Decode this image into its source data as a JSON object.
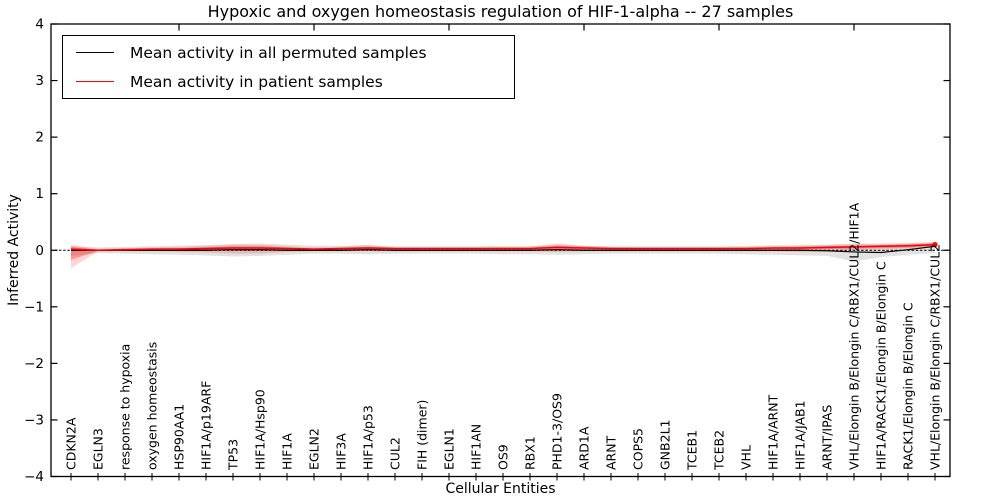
{
  "page": {
    "background": "#ffffff"
  },
  "legend": {
    "items": [
      {
        "label": "Mean activity in all permuted samples",
        "color": "#000000"
      },
      {
        "label": "Mean activity in patient samples",
        "color": "#ff0000"
      }
    ]
  },
  "chart_data": {
    "type": "line",
    "title": "Hypoxic and oxygen homeostasis regulation of HIF-1-alpha -- 27 samples",
    "xlabel": "Cellular Entities",
    "ylabel": "Inferred Activity",
    "ylim": [
      -4,
      4
    ],
    "yticks": [
      {
        "v": 4,
        "label": "4"
      },
      {
        "v": 3,
        "label": "3"
      },
      {
        "v": 2,
        "label": "2"
      },
      {
        "v": 1,
        "label": "1"
      },
      {
        "v": 0,
        "label": "0"
      },
      {
        "v": -1,
        "label": "−1"
      },
      {
        "v": -2,
        "label": "−2"
      },
      {
        "v": -3,
        "label": "−3"
      },
      {
        "v": -4,
        "label": "−4"
      }
    ],
    "xtick_major_values": [
      5,
      10,
      15,
      20,
      25,
      30
    ],
    "zero_reference_line": {
      "style": "dotted",
      "color": "#000000",
      "y": 0
    },
    "grid": "off",
    "legend_position": "upper-left",
    "categories": [
      "CDKN2A",
      "EGLN3",
      "response to hypoxia",
      "oxygen homeostasis",
      "HSP90AA1",
      "HIF1A/p19ARF",
      "TP53",
      "HIF1A/Hsp90",
      "HIF1A",
      "EGLN2",
      "HIF3A",
      "HIF1A/p53",
      "CUL2",
      "FIH (dimer)",
      "EGLN1",
      "HIF1AN",
      "OS9",
      "RBX1",
      "PHD1-3/OS9",
      "ARD1A",
      "ARNT",
      "COPS5",
      "GNB2L1",
      "TCEB1",
      "TCEB2",
      "VHL",
      "HIF1A/ARNT",
      "HIF1A/JAB1",
      "ARNT/IPAS",
      "VHL/Elongin B/Elongin C/RBX1/CUL2/HIF1A",
      "HIF1A/RACK1/Elongin B/Elongin C",
      "RACK1/Elongin B/Elongin C",
      "VHL/Elongin B/Elongin C/RBX1/CUL2"
    ],
    "series": [
      {
        "name": "Mean activity in all permuted samples",
        "color": "#000000",
        "width": 1.2,
        "values": [
          0,
          0,
          0,
          0,
          0,
          0,
          0.01,
          0.01,
          0,
          0,
          0,
          0.01,
          0,
          0,
          0,
          0,
          0,
          0,
          0.01,
          0,
          0,
          0,
          0,
          0,
          0,
          0,
          0,
          0,
          -0.01,
          -0.03,
          -0.04,
          0.01,
          0.07
        ]
      },
      {
        "name": "Mean activity in patient samples",
        "color": "#ff0000",
        "width": 1.5,
        "values": [
          0.02,
          0.0,
          0.01,
          0.02,
          0.02,
          0.03,
          0.04,
          0.04,
          0.03,
          0.02,
          0.03,
          0.04,
          0.03,
          0.03,
          0.03,
          0.03,
          0.03,
          0.03,
          0.05,
          0.04,
          0.03,
          0.03,
          0.03,
          0.03,
          0.03,
          0.03,
          0.04,
          0.04,
          0.05,
          0.06,
          0.07,
          0.08,
          0.1
        ]
      }
    ],
    "bands": [
      {
        "name": "permuted-samples-range",
        "color": "#8a8a8a",
        "opacity": 0.25,
        "upper": [
          0.07,
          0.05,
          0.06,
          0.07,
          0.08,
          0.09,
          0.11,
          0.12,
          0.1,
          0.08,
          0.08,
          0.09,
          0.07,
          0.07,
          0.07,
          0.07,
          0.08,
          0.08,
          0.1,
          0.08,
          0.07,
          0.07,
          0.07,
          0.07,
          0.07,
          0.08,
          0.09,
          0.1,
          0.1,
          0.12,
          0.1,
          0.12,
          0.13
        ],
        "lower": [
          -0.1,
          -0.05,
          -0.06,
          -0.07,
          -0.08,
          -0.09,
          -0.11,
          -0.1,
          -0.08,
          -0.06,
          -0.06,
          -0.07,
          -0.06,
          -0.06,
          -0.06,
          -0.06,
          -0.07,
          -0.07,
          -0.08,
          -0.07,
          -0.06,
          -0.06,
          -0.06,
          -0.06,
          -0.06,
          -0.07,
          -0.08,
          -0.09,
          -0.1,
          -0.2,
          -0.12,
          -0.08,
          -0.05
        ]
      },
      {
        "name": "patient-samples-range-outer",
        "color": "#ff0000",
        "opacity": 0.16,
        "upper": [
          0.1,
          0.02,
          0.04,
          0.05,
          0.06,
          0.08,
          0.1,
          0.1,
          0.07,
          0.05,
          0.06,
          0.09,
          0.05,
          0.05,
          0.05,
          0.05,
          0.06,
          0.06,
          0.12,
          0.08,
          0.06,
          0.05,
          0.05,
          0.05,
          0.05,
          0.06,
          0.07,
          0.08,
          0.09,
          0.11,
          0.12,
          0.13,
          0.15
        ],
        "lower": [
          -0.32,
          -0.02,
          -0.02,
          -0.02,
          -0.03,
          -0.04,
          -0.06,
          -0.06,
          -0.03,
          -0.02,
          -0.02,
          -0.02,
          -0.02,
          -0.02,
          -0.02,
          -0.02,
          -0.02,
          -0.02,
          -0.03,
          -0.02,
          -0.02,
          -0.02,
          -0.02,
          -0.02,
          -0.02,
          -0.02,
          -0.02,
          -0.03,
          -0.02,
          0.0,
          0.02,
          0.03,
          0.05
        ]
      },
      {
        "name": "patient-samples-range-inner",
        "color": "#ff0000",
        "opacity": 0.3,
        "upper": [
          0.06,
          0.01,
          0.02,
          0.03,
          0.04,
          0.05,
          0.07,
          0.07,
          0.05,
          0.03,
          0.04,
          0.06,
          0.04,
          0.04,
          0.04,
          0.04,
          0.04,
          0.04,
          0.08,
          0.06,
          0.04,
          0.04,
          0.04,
          0.04,
          0.04,
          0.04,
          0.05,
          0.06,
          0.07,
          0.08,
          0.09,
          0.1,
          0.12
        ],
        "lower": [
          -0.17,
          -0.01,
          0.0,
          0.0,
          0.0,
          0.0,
          -0.01,
          -0.01,
          0.0,
          0.0,
          0.01,
          0.01,
          0.01,
          0.01,
          0.01,
          0.01,
          0.01,
          0.01,
          0.01,
          0.01,
          0.01,
          0.01,
          0.01,
          0.01,
          0.01,
          0.01,
          0.01,
          0.01,
          0.02,
          0.03,
          0.04,
          0.05,
          0.07
        ]
      }
    ]
  }
}
